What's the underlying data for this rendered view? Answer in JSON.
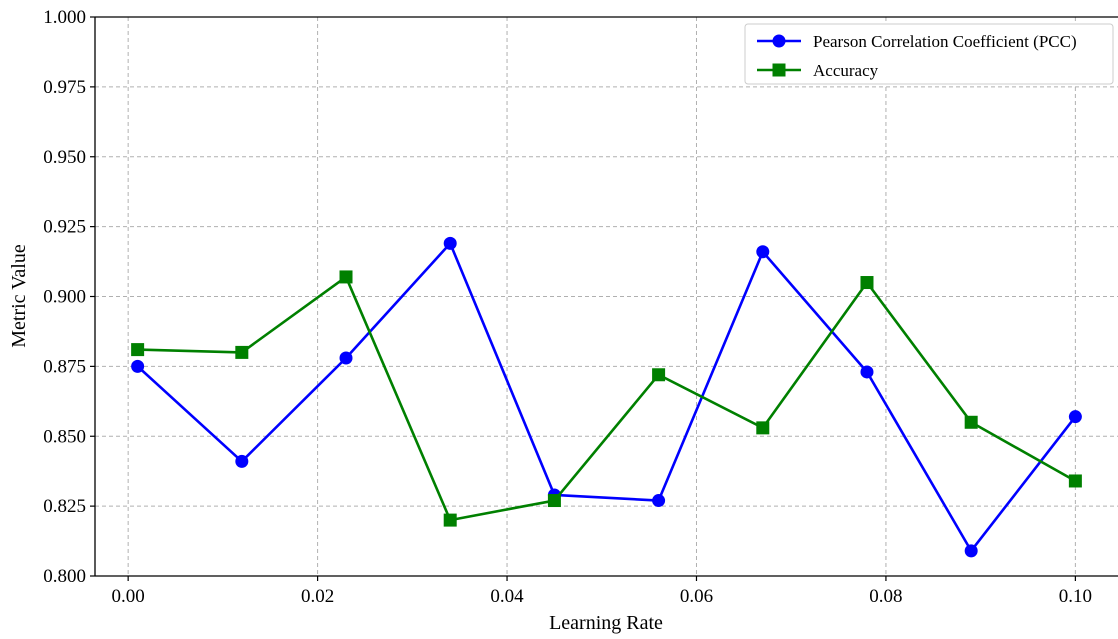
{
  "chart_data": {
    "type": "line",
    "title": "",
    "xlabel": "Learning Rate",
    "ylabel": "Metric Value",
    "xlim": [
      -0.0035,
      0.1045
    ],
    "ylim": [
      0.8,
      1.0
    ],
    "x_ticks": [
      0.0,
      0.02,
      0.04,
      0.06,
      0.08,
      0.1
    ],
    "x_tick_labels": [
      "0.00",
      "0.02",
      "0.04",
      "0.06",
      "0.08",
      "0.10"
    ],
    "y_ticks": [
      0.8,
      0.825,
      0.85,
      0.875,
      0.9,
      0.925,
      0.95,
      0.975,
      1.0
    ],
    "y_tick_labels": [
      "0.800",
      "0.825",
      "0.850",
      "0.875",
      "0.900",
      "0.925",
      "0.950",
      "0.975",
      "1.000"
    ],
    "grid": true,
    "legend_position": "top-right",
    "x": [
      0.001,
      0.012,
      0.023,
      0.034,
      0.045,
      0.056,
      0.067,
      0.078,
      0.089,
      0.1
    ],
    "series": [
      {
        "name": "Pearson Correlation Coefficient (PCC)",
        "color": "#0000ff",
        "marker": "circle",
        "values": [
          0.875,
          0.841,
          0.878,
          0.919,
          0.829,
          0.827,
          0.916,
          0.873,
          0.809,
          0.857
        ]
      },
      {
        "name": "Accuracy",
        "color": "#008000",
        "marker": "square",
        "values": [
          0.881,
          0.88,
          0.907,
          0.82,
          0.827,
          0.872,
          0.853,
          0.905,
          0.855,
          0.834
        ]
      }
    ]
  }
}
